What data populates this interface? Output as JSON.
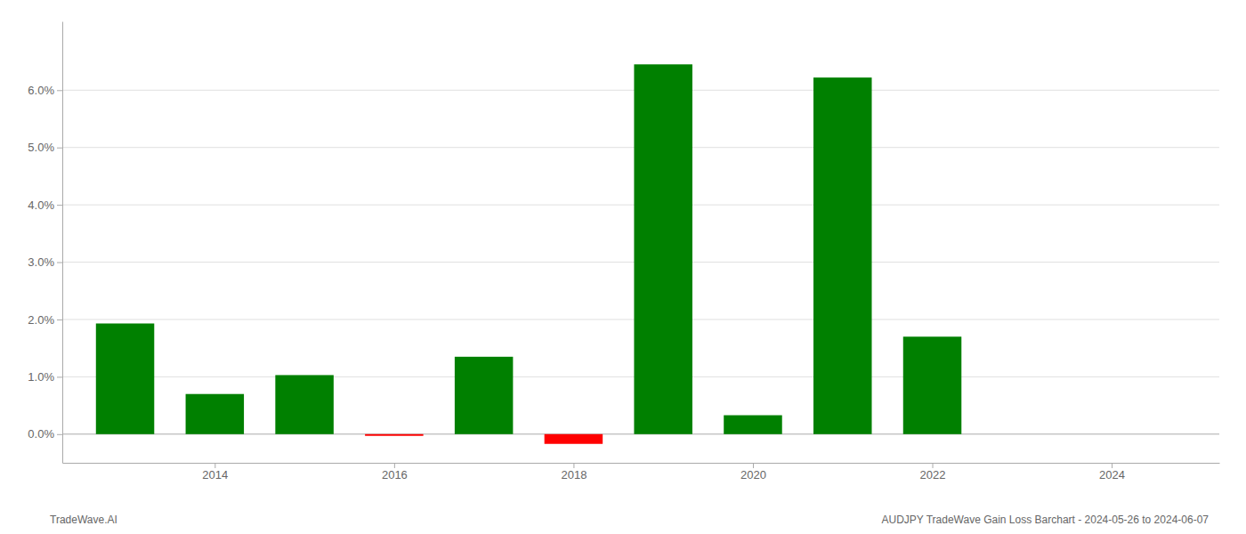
{
  "chart_data": {
    "type": "bar",
    "x": [
      2013,
      2014,
      2015,
      2016,
      2017,
      2018,
      2019,
      2020,
      2021,
      2022,
      2023
    ],
    "values": [
      0.0193,
      0.007,
      0.0103,
      -0.0003,
      0.0135,
      -0.0017,
      0.0645,
      0.0033,
      0.0622,
      0.017,
      0.0
    ],
    "colors": [
      "#008000",
      "#008000",
      "#008000",
      "#ff0000",
      "#008000",
      "#ff0000",
      "#008000",
      "#008000",
      "#008000",
      "#008000",
      "#008000"
    ],
    "xlim": [
      2012.3,
      2025.2
    ],
    "xticks": [
      2014,
      2016,
      2018,
      2020,
      2022,
      2024
    ],
    "ylim": [
      -0.005,
      0.072
    ],
    "yticks": [
      {
        "value": 0.0,
        "label": "0.0%"
      },
      {
        "value": 0.01,
        "label": "1.0%"
      },
      {
        "value": 0.02,
        "label": "2.0%"
      },
      {
        "value": 0.03,
        "label": "3.0%"
      },
      {
        "value": 0.04,
        "label": "4.0%"
      },
      {
        "value": 0.05,
        "label": "5.0%"
      },
      {
        "value": 0.06,
        "label": "6.0%"
      }
    ],
    "grid": true,
    "annotations": [
      "TradeWave.AI",
      "AUDJPY TradeWave Gain Loss Barchart - 2024-05-26 to 2024-06-07"
    ]
  }
}
